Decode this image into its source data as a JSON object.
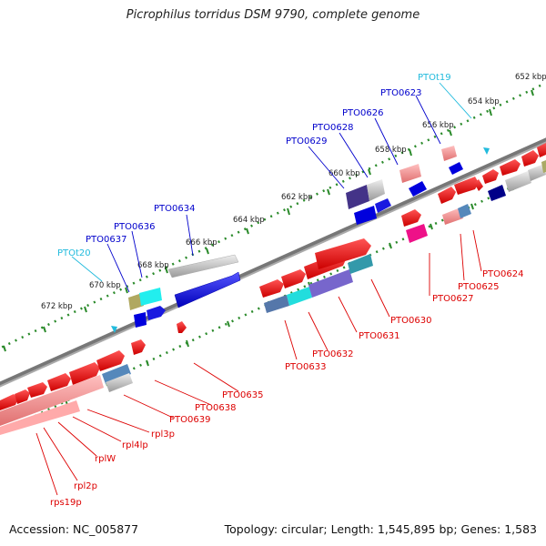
{
  "title": "Picrophilus torridus DSM 9790, complete genome",
  "accession": "Accession: NC_005877",
  "summary": "Topology: circular; Length: 1,545,895 bp; Genes: 1,583",
  "ticks": [
    "652 kbp",
    "654 kbp",
    "656 kbp",
    "658 kbp",
    "660 kbp",
    "662 kbp",
    "664 kbp",
    "666 kbp",
    "668 kbp",
    "670 kbp",
    "672 kbp"
  ],
  "labels_plus_blue": [
    "PTO0623",
    "PTO0626",
    "PTO0628",
    "PTO0629",
    "PTO0634",
    "PTO0636",
    "PTO0637"
  ],
  "labels_plus_cyan": [
    "PTOt19",
    "PTOt20"
  ],
  "labels_minus_red": [
    "PTO0624",
    "PTO0625",
    "PTO0627",
    "PTO0630",
    "PTO0631",
    "PTO0632",
    "PTO0633",
    "PTO0635",
    "PTO0638",
    "PTO0639",
    "rpl3p",
    "rpl4lp",
    "rplW",
    "rpl2p",
    "rps19p"
  ],
  "colors": {
    "plus_label": "#0000cc",
    "trna_label": "#22bbdd",
    "minus_label": "#dd0000",
    "tick_dot": "#2a8a2a",
    "backbone": "#808080"
  }
}
